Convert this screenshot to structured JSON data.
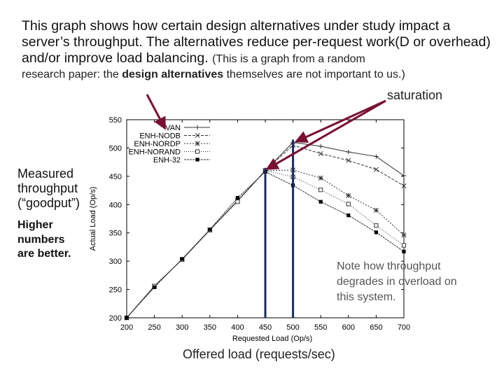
{
  "intro": {
    "line1": "This graph shows how certain design alternatives under study impact a server’s throughput.  The alternatives reduce per-request work(D or overhead) and/or improve load balancing. ",
    "line1_small": "(This is a graph from a random",
    "line2_a": "research paper: the ",
    "line2_bold": "design alternatives",
    "line2_b": " themselves are not important to us.)"
  },
  "labels": {
    "saturation": "saturation",
    "measured": "Measured throughput (“goodput”)",
    "higher": "Higher numbers are better.",
    "note": "Note how throughput degrades in overload on this system.",
    "offered": "Offered load (requests/sec)"
  },
  "colors": {
    "arrow": "#7a1030",
    "vline": "#1a2a66",
    "series": "#333333"
  },
  "chart_data": {
    "type": "line",
    "xlabel": "Requested Load (Op/s)",
    "ylabel": "Actual Load (Op/s)",
    "xlim": [
      200,
      700
    ],
    "ylim": [
      200,
      550
    ],
    "xticks": [
      200,
      250,
      300,
      350,
      400,
      450,
      500,
      550,
      600,
      650,
      700
    ],
    "yticks": [
      200,
      250,
      300,
      350,
      400,
      450,
      500,
      550
    ],
    "legend_position": "top-left",
    "grid": false,
    "x": [
      200,
      250,
      300,
      350,
      400,
      450,
      500,
      550,
      600,
      650,
      700
    ],
    "series": [
      {
        "name": "VAN",
        "marker": "plus",
        "dash": "",
        "values": [
          200,
          256,
          303,
          355,
          407,
          460,
          510,
          503,
          493,
          485,
          451
        ]
      },
      {
        "name": "ENH-NODB",
        "marker": "x",
        "dash": "4 2",
        "values": [
          200,
          256,
          303,
          355,
          407,
          460,
          505,
          490,
          478,
          462,
          433
        ]
      },
      {
        "name": "ENH-NORDP",
        "marker": "star",
        "dash": "2 2",
        "values": [
          200,
          256,
          303,
          355,
          407,
          460,
          461,
          447,
          416,
          390,
          346
        ]
      },
      {
        "name": "ENH-NORAND",
        "marker": "square-open",
        "dash": "1 2",
        "values": [
          200,
          256,
          303,
          355,
          405,
          460,
          449,
          426,
          401,
          363,
          328
        ]
      },
      {
        "name": "ENH-32",
        "marker": "square-filled",
        "dash": "3 1",
        "values": [
          200,
          254,
          304,
          356,
          412,
          458,
          434,
          405,
          381,
          351,
          317
        ]
      }
    ],
    "vertical_lines": [
      450,
      500
    ]
  }
}
